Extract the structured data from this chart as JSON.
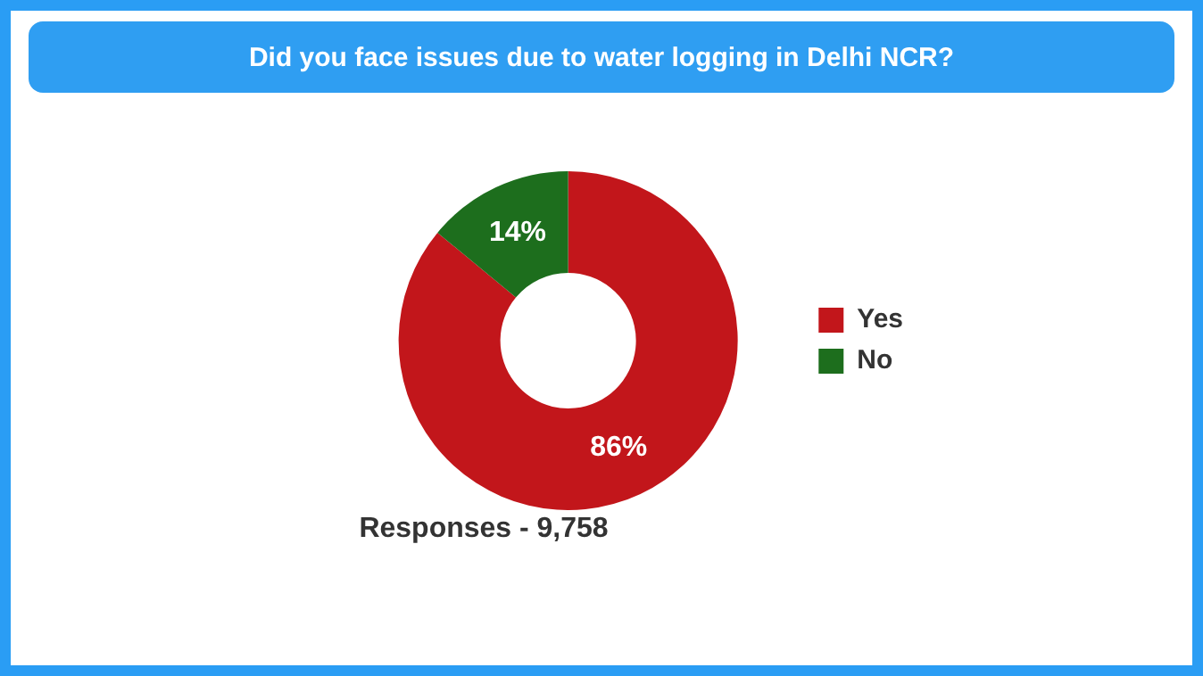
{
  "chart_data": {
    "type": "donut",
    "title": "Did you face issues due to water logging in Delhi NCR?",
    "categories": [
      "Yes",
      "No"
    ],
    "values": [
      86,
      14
    ],
    "colors": [
      "#c2161b",
      "#1d6e1d"
    ],
    "value_labels": [
      "86%",
      "14%"
    ],
    "legend": "right",
    "annotations": [
      "Responses - 9,758"
    ]
  }
}
